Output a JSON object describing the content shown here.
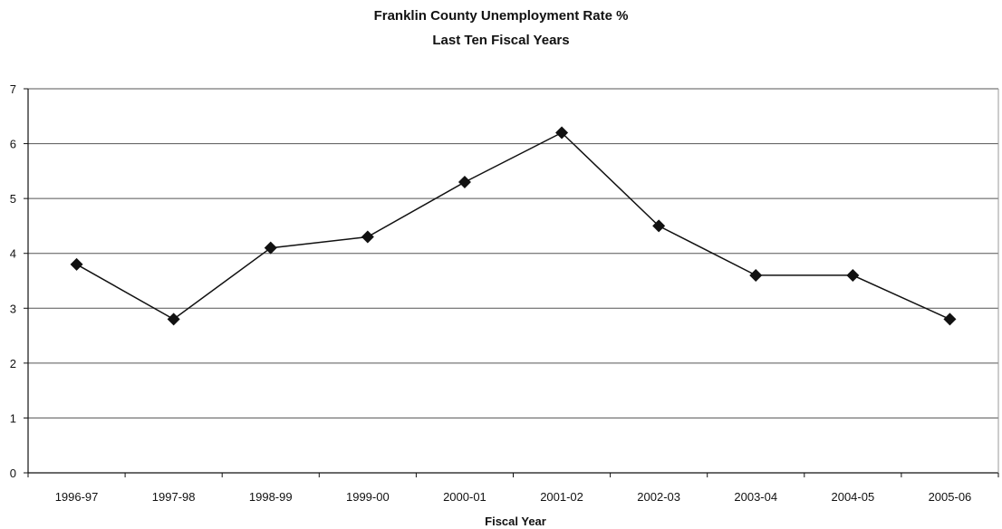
{
  "chart_data": {
    "type": "line",
    "title": "Franklin County Unemployment Rate %",
    "subtitle": "Last Ten Fiscal Years",
    "xlabel": "Fiscal Year",
    "ylabel": "",
    "categories": [
      "1996-97",
      "1997-98",
      "1998-99",
      "1999-00",
      "2000-01",
      "2001-02",
      "2002-03",
      "2003-04",
      "2004-05",
      "2005-06"
    ],
    "series": [
      {
        "values": [
          3.8,
          2.8,
          4.1,
          4.3,
          5.3,
          6.2,
          4.5,
          3.6,
          3.6,
          2.8
        ]
      }
    ],
    "ylim": [
      0,
      7
    ],
    "yticks": [
      0,
      1,
      2,
      3,
      4,
      5,
      6,
      7
    ],
    "grid": true,
    "legend": "none",
    "marker": "diamond",
    "line_color": "#111111",
    "marker_color": "#111111",
    "grid_color": "#555555"
  }
}
